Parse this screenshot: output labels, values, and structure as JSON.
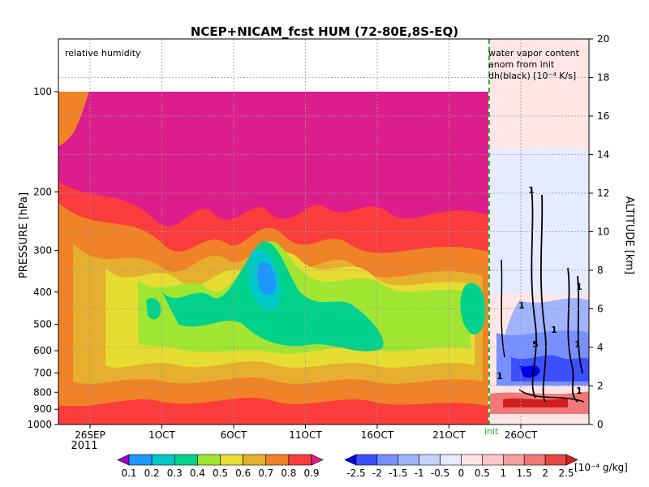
{
  "chart_data": {
    "type": "heatmap",
    "title": "NCEP+NICAM_fcst HUM (72-80E,8S-EQ)",
    "left_panel_label": "relative humidity",
    "right_panel_label_lines": [
      "water vapor content",
      "anom from init",
      "dh(black) [10⁻⁴ K/s]"
    ],
    "init_label": "init",
    "ylabel_left": "PRESSURE [hPa]",
    "ylabel_right": "ALTITUDE [km]",
    "pressure_ticks": [
      "100",
      "200",
      "300",
      "400",
      "500",
      "600",
      "700",
      "800",
      "900",
      "1000"
    ],
    "altitude_ticks": [
      "0",
      "2",
      "4",
      "6",
      "8",
      "10",
      "12",
      "14",
      "16",
      "18",
      "20"
    ],
    "x_ticks": [
      "26SEP",
      "1OCT",
      "6OCT",
      "11OCT",
      "16OCT",
      "21OCT",
      "26OCT"
    ],
    "year_label": "2011",
    "grid": true,
    "colorbar_rh": {
      "labels": [
        "0.1",
        "0.2",
        "0.3",
        "0.4",
        "0.5",
        "0.6",
        "0.7",
        "0.8",
        "0.9"
      ],
      "colors": [
        "#a000c8",
        "#1e96ff",
        "#00c8c8",
        "#00d28c",
        "#a0e632",
        "#e6dc32",
        "#e6af2d",
        "#f08228",
        "#fa3c3c",
        "#dc1e8c"
      ]
    },
    "colorbar_anom": {
      "labels": [
        "-2.5",
        "-2",
        "-1.5",
        "-1",
        "-0.5",
        "0",
        "0.5",
        "1",
        "1.5",
        "2",
        "2.5"
      ],
      "unit": "[10⁻⁴ g/kg]",
      "colors": [
        "#0000e6",
        "#3c50ff",
        "#7890ff",
        "#a0b4ff",
        "#c8d2ff",
        "#e6ebff",
        "#ffe6e6",
        "#ffc8c8",
        "#f5a0a0",
        "#f07878",
        "#e64646",
        "#d21e1e"
      ]
    },
    "contour_labels": [
      "1",
      "1",
      "1",
      "1",
      "5",
      "1",
      "1",
      "1"
    ]
  }
}
